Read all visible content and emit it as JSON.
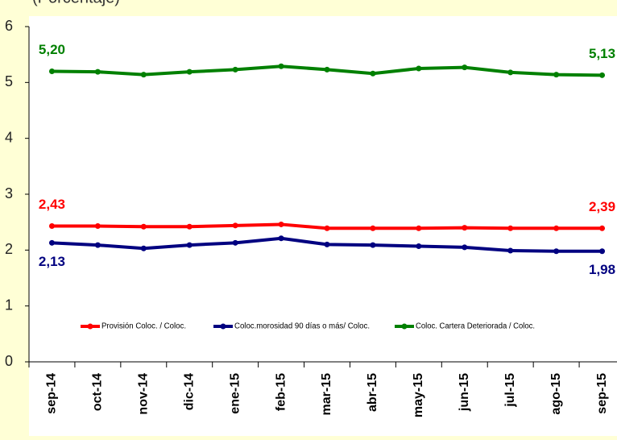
{
  "chart_data": {
    "type": "line",
    "subtitle": "(Porcentaje)",
    "categories": [
      "sep-14",
      "oct-14",
      "nov-14",
      "dic-14",
      "ene-15",
      "feb-15",
      "mar-15",
      "abr-15",
      "may-15",
      "jun-15",
      "jul-15",
      "ago-15",
      "sep-15"
    ],
    "series": [
      {
        "name": "Provisión Coloc. / Coloc.",
        "color": "#ff0000",
        "values": [
          2.43,
          2.43,
          2.42,
          2.42,
          2.44,
          2.46,
          2.39,
          2.39,
          2.39,
          2.4,
          2.39,
          2.39,
          2.39
        ],
        "value_labels": [
          "2,43",
          null,
          null,
          null,
          null,
          null,
          null,
          null,
          null,
          null,
          null,
          null,
          "2,39"
        ]
      },
      {
        "name": "Coloc.morosidad 90 días o más/ Coloc.",
        "color": "#000080",
        "values": [
          2.13,
          2.09,
          2.03,
          2.09,
          2.13,
          2.21,
          2.1,
          2.09,
          2.07,
          2.05,
          1.99,
          1.98,
          1.98
        ],
        "value_labels": [
          "2,13",
          null,
          null,
          null,
          null,
          null,
          null,
          null,
          null,
          null,
          null,
          null,
          "1,98"
        ]
      },
      {
        "name": "Coloc. Cartera Deteriorada / Coloc.",
        "color": "#008000",
        "values": [
          5.2,
          5.19,
          5.14,
          5.19,
          5.23,
          5.29,
          5.23,
          5.16,
          5.25,
          5.27,
          5.18,
          5.14,
          5.13
        ],
        "value_labels": [
          "5,20",
          null,
          null,
          null,
          null,
          null,
          null,
          null,
          null,
          null,
          null,
          null,
          "5,13"
        ]
      }
    ],
    "ylim": [
      0,
      6
    ],
    "yticks": [
      0,
      1,
      2,
      3,
      4,
      5,
      6
    ],
    "grid": false,
    "legend": "bottom"
  }
}
